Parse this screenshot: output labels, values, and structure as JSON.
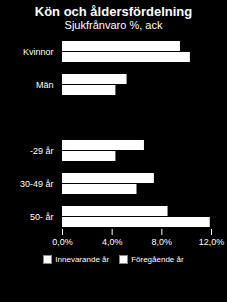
{
  "chart_data": {
    "type": "bar",
    "orientation": "horizontal",
    "title": "Kön och åldersfördelning",
    "subtitle": "Sjukfrånvaro %, ack",
    "categories": [
      "Kvinnor",
      "Män",
      null,
      "-29 år",
      "30-49 år",
      "50- år"
    ],
    "series": [
      {
        "name": "Innevarande år",
        "color": "#ffffff",
        "values": [
          9.5,
          5.2,
          null,
          6.6,
          7.4,
          8.5
        ]
      },
      {
        "name": "Föregående år",
        "color": "#ffffff",
        "values": [
          10.3,
          4.3,
          null,
          4.3,
          6.0,
          11.9
        ]
      }
    ],
    "xlim": [
      0,
      12
    ],
    "xticks": [
      {
        "value": 0,
        "label": "0,0%"
      },
      {
        "value": 4,
        "label": "4,0%"
      },
      {
        "value": 8,
        "label": "8,0%"
      },
      {
        "value": 12,
        "label": "12,0%"
      }
    ],
    "grid": false,
    "legend": "bottom"
  }
}
